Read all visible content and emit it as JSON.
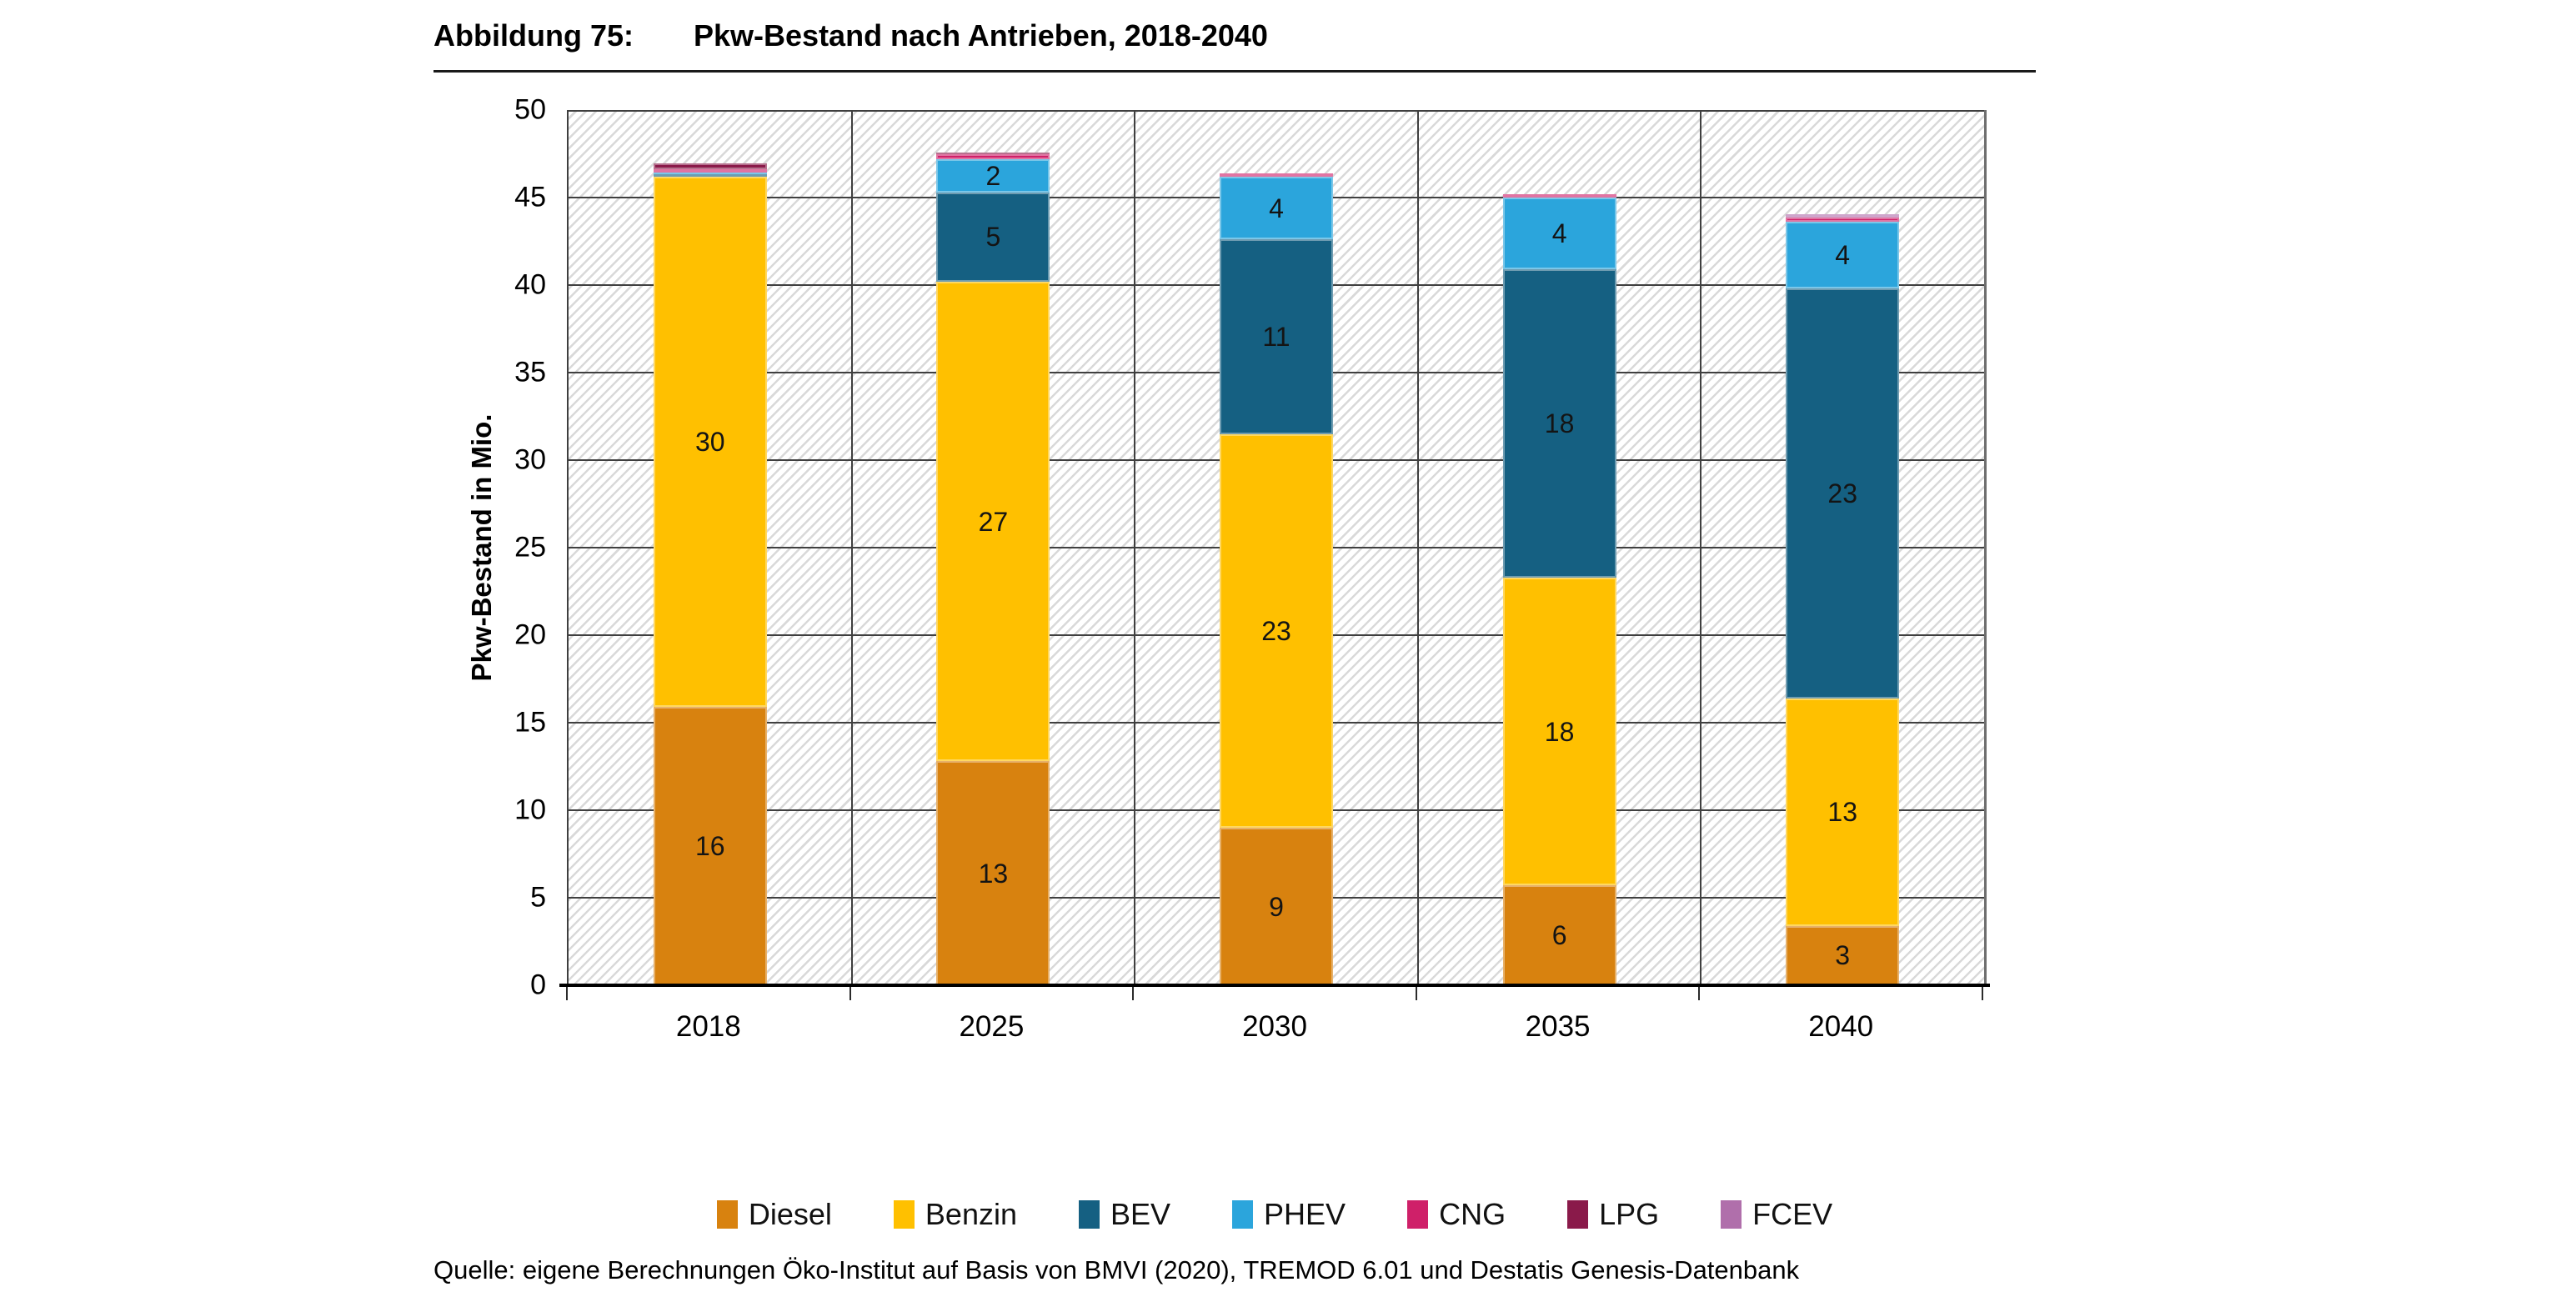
{
  "figure": {
    "label": "Abbildung 75:",
    "title": "Pkw-Bestand nach Antrieben, 2018-2040"
  },
  "source_line": "Quelle: eigene Berechnungen Öko-Institut auf Basis von BMVI (2020), TREMOD 6.01 und Destatis Genesis-Datenbank",
  "chart_data": {
    "type": "bar",
    "stacked": true,
    "title": "Pkw-Bestand nach Antrieben, 2018-2040",
    "xlabel": "",
    "ylabel": "Pkw-Bestand in Mio.",
    "ylim": [
      0,
      50
    ],
    "yticks": [
      0,
      5,
      10,
      15,
      20,
      25,
      30,
      35,
      40,
      45,
      50
    ],
    "grid": true,
    "grid_pattern": "diagonal-hatch-background",
    "legend_position": "bottom",
    "categories": [
      "2018",
      "2025",
      "2030",
      "2035",
      "2040"
    ],
    "series": [
      {
        "name": "Diesel",
        "color": "#D8820F",
        "values": [
          15.9,
          12.8,
          9.0,
          5.7,
          3.4
        ],
        "labels": [
          "16",
          "13",
          "9",
          "6",
          "3"
        ]
      },
      {
        "name": "Benzin",
        "color": "#FFC000",
        "values": [
          30.3,
          27.4,
          22.5,
          17.6,
          13.0
        ],
        "labels": [
          "30",
          "27",
          "23",
          "18",
          "13"
        ]
      },
      {
        "name": "BEV",
        "color": "#156082",
        "values": [
          0.15,
          5.1,
          11.1,
          17.6,
          23.4
        ],
        "labels": [
          "",
          "5",
          "11",
          "18",
          "23"
        ]
      },
      {
        "name": "PHEV",
        "color": "#2BA5DC",
        "values": [
          0.1,
          1.9,
          3.6,
          4.1,
          3.8
        ],
        "labels": [
          "",
          "2",
          "4",
          "4",
          "4"
        ]
      },
      {
        "name": "CNG",
        "color": "#CF2069",
        "values": [
          0.15,
          0.3,
          0.2,
          0.2,
          0.25
        ],
        "labels": [
          "",
          "",
          "",
          "",
          ""
        ]
      },
      {
        "name": "LPG",
        "color": "#8A1A4A",
        "values": [
          0.35,
          0.05,
          0.0,
          0.0,
          0.0
        ],
        "labels": [
          "",
          "",
          "",
          "",
          ""
        ]
      },
      {
        "name": "FCEV",
        "color": "#B06FAB",
        "values": [
          0.0,
          0.0,
          0.0,
          0.0,
          0.2
        ],
        "labels": [
          "",
          "",
          "",
          "",
          ""
        ]
      }
    ],
    "totals_approx": [
      46.95,
      47.55,
      46.4,
      45.2,
      44.05
    ]
  }
}
